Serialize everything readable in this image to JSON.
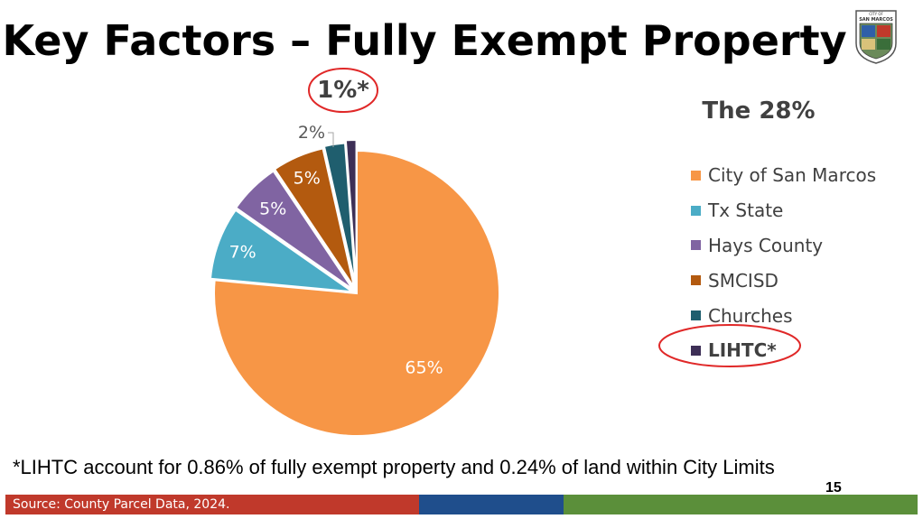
{
  "slide": {
    "title": "Key Factors – Fully Exempt Property",
    "logo": {
      "text_top": "CITY OF",
      "text_main": "SAN MARCOS"
    },
    "footnote": "*LIHTC account for 0.86% of fully exempt property and 0.24% of land within City Limits",
    "page_number": "15",
    "source": "Source: County Parcel Data, 2024.",
    "footer_colors": [
      "#c0392b",
      "#1f4e8c",
      "#5b8f3a"
    ]
  },
  "chart_data": {
    "type": "pie",
    "title": "The 28%",
    "legend_position": "right",
    "slices": [
      {
        "label": "City of San Marcos",
        "value": 65,
        "display": "65%",
        "color": "#f79646"
      },
      {
        "label": "Tx State",
        "value": 7,
        "display": "7%",
        "color": "#4bacc6"
      },
      {
        "label": "Hays County",
        "value": 5,
        "display": "5%",
        "color": "#8064a2"
      },
      {
        "label": "SMCISD",
        "value": 5,
        "display": "5%",
        "color": "#b35a0f"
      },
      {
        "label": "Churches",
        "value": 2,
        "display": "2%",
        "color": "#1f5e6e"
      },
      {
        "label": "LIHTC*",
        "value": 1,
        "display": "1%*",
        "color": "#3d2f56",
        "highlighted": true
      }
    ]
  }
}
